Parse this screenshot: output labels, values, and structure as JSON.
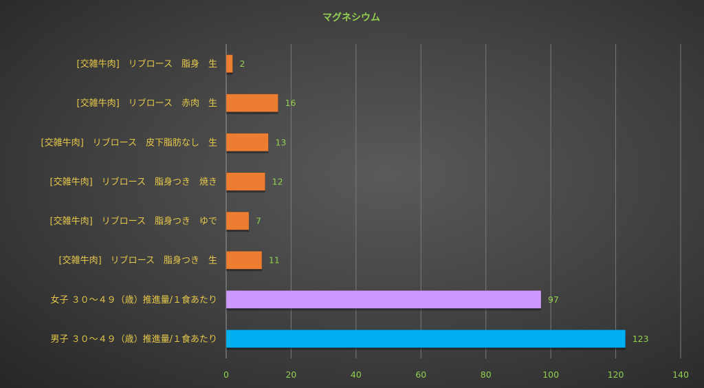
{
  "chart_data": {
    "type": "bar",
    "orientation": "horizontal",
    "title": "マグネシウム",
    "categories": [
      "[交雑牛肉]　リブロース　脂身　生",
      "[交雑牛肉]　リブロース　赤肉　生",
      "[交雑牛肉]　リブロース　皮下脂肪なし　生",
      "[交雑牛肉]　リブロース　脂身つき　焼き",
      "[交雑牛肉]　リブロース　脂身つき　ゆで",
      "[交雑牛肉]　リブロース　脂身つき　生",
      "女子 ３０～４９（歳）推進量/１食あたり",
      "男子 ３０～４９（歳）推進量/１食あたり"
    ],
    "values": [
      2,
      16,
      13,
      12,
      7,
      11,
      97,
      123
    ],
    "bar_colors": [
      "#ed7d31",
      "#ed7d31",
      "#ed7d31",
      "#ed7d31",
      "#ed7d31",
      "#ed7d31",
      "#cc99ff",
      "#00b0f0"
    ],
    "xlim": [
      0,
      140
    ],
    "xticks": [
      0,
      20,
      40,
      60,
      80,
      100,
      120,
      140
    ],
    "grid": true,
    "xlabel": "",
    "ylabel": ""
  }
}
